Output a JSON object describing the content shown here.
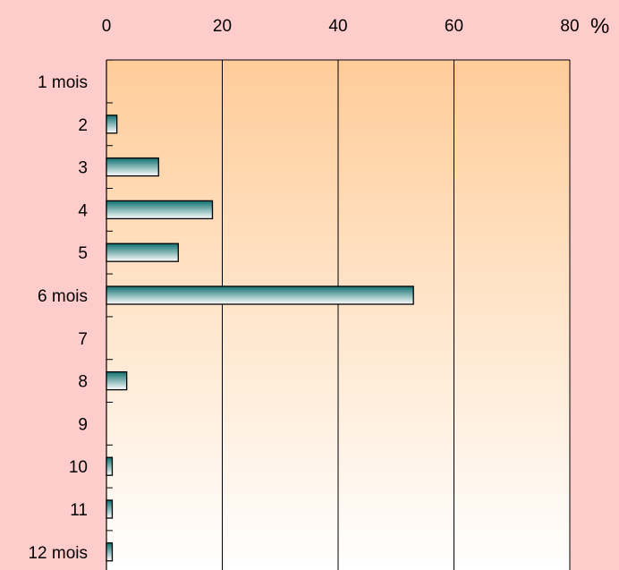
{
  "chart_data": {
    "type": "bar",
    "orientation": "horizontal",
    "categories": [
      "1 mois",
      "2",
      "3",
      "4",
      "5",
      "6 mois",
      "7",
      "8",
      "9",
      "10",
      "11",
      "12 mois"
    ],
    "values": [
      0,
      1.8,
      9.0,
      18.3,
      12.4,
      53.0,
      0,
      3.5,
      0,
      1.0,
      1.0,
      1.0
    ],
    "xlim": [
      0,
      80
    ],
    "x_ticks": [
      "0",
      "20",
      "40",
      "60",
      "80"
    ],
    "unit": "%",
    "grid": "vertical",
    "colors": {
      "page_background": "#ffcccc",
      "plot_gradient_top": "#ffcc99",
      "plot_gradient_bottom": "#ffffff",
      "bar_dark": "#0f6f6f",
      "bar_light": "#ffffff"
    }
  }
}
